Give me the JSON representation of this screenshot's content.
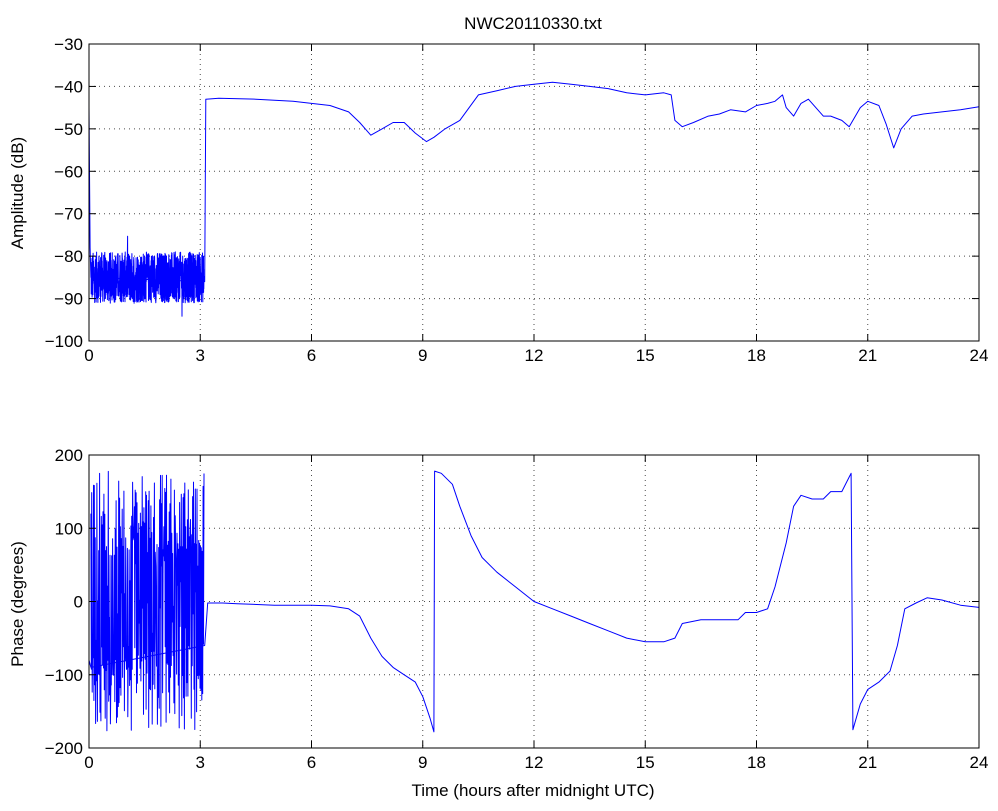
{
  "figure": {
    "title": "NWC20110330.txt"
  },
  "chart_data": [
    {
      "type": "line",
      "title": "NWC20110330.txt",
      "xlabel": "",
      "ylabel": "Amplitude (dB)",
      "xlim": [
        0,
        24
      ],
      "ylim": [
        -100,
        -30
      ],
      "xticks": [
        0,
        3,
        6,
        9,
        12,
        15,
        18,
        21,
        24
      ],
      "yticks": [
        -100,
        -90,
        -80,
        -70,
        -60,
        -50,
        -40,
        -30
      ],
      "grid": true,
      "color": "#0000ff",
      "noise_band": {
        "x_start": 0.05,
        "x_end": 3.1,
        "y_center": -85,
        "y_spread": 6
      },
      "x": [
        0,
        0.03,
        0.05,
        3.12,
        3.15,
        3.5,
        4.5,
        5.5,
        6.5,
        7.0,
        7.3,
        7.6,
        7.9,
        8.2,
        8.5,
        8.8,
        9.1,
        9.3,
        9.6,
        10.0,
        10.5,
        11.0,
        11.5,
        12.0,
        12.5,
        13.0,
        13.5,
        14.0,
        14.5,
        15.0,
        15.5,
        15.7,
        15.8,
        16.0,
        16.3,
        16.7,
        17.0,
        17.3,
        17.7,
        18.0,
        18.3,
        18.5,
        18.7,
        18.8,
        19.0,
        19.2,
        19.4,
        19.6,
        19.8,
        20.0,
        20.3,
        20.5,
        20.8,
        21.0,
        21.3,
        21.5,
        21.7,
        21.9,
        22.2,
        22.5,
        23.0,
        23.5,
        24.0
      ],
      "y": [
        -45,
        -78,
        -85,
        -86,
        -43,
        -42.8,
        -43,
        -43.5,
        -44.5,
        -46,
        -48.5,
        -51.5,
        -50,
        -48.5,
        -48.5,
        -51,
        -53,
        -52,
        -50,
        -48,
        -42,
        -41,
        -40,
        -39.5,
        -39,
        -39.5,
        -40,
        -40.5,
        -41.5,
        -42,
        -41.5,
        -42,
        -48,
        -49.5,
        -48.5,
        -47,
        -46.5,
        -45.5,
        -46,
        -44.5,
        -44,
        -43.5,
        -42,
        -45,
        -47,
        -44,
        -43,
        -45,
        -47,
        -47,
        -48,
        -49.5,
        -45,
        -43.5,
        -44.5,
        -49,
        -54.5,
        -50,
        -47,
        -46.5,
        -46,
        -45.5,
        -44.8
      ]
    },
    {
      "type": "line",
      "title": "",
      "xlabel": "Time (hours after midnight UTC)",
      "ylabel": "Phase (degrees)",
      "xlim": [
        0,
        24
      ],
      "ylim": [
        -200,
        200
      ],
      "xticks": [
        0,
        3,
        6,
        9,
        12,
        15,
        18,
        21,
        24
      ],
      "yticks": [
        -200,
        -100,
        0,
        100,
        200
      ],
      "grid": true,
      "color": "#0000ff",
      "noise_band": {
        "x_start": 0.05,
        "x_end": 3.1,
        "y_center": 0,
        "y_spread": 178
      },
      "x": [
        0,
        0.05,
        3.12,
        3.2,
        3.6,
        4.0,
        5.0,
        6.0,
        6.5,
        7.0,
        7.3,
        7.6,
        7.9,
        8.2,
        8.5,
        8.8,
        9.0,
        9.2,
        9.3,
        9.32,
        9.5,
        9.8,
        10.0,
        10.3,
        10.6,
        11.0,
        11.5,
        12.0,
        12.5,
        13.0,
        13.5,
        14.0,
        14.5,
        15.0,
        15.5,
        15.8,
        16.0,
        16.5,
        17.0,
        17.5,
        17.7,
        18.0,
        18.3,
        18.5,
        18.8,
        19.0,
        19.2,
        19.5,
        19.8,
        20.0,
        20.3,
        20.5,
        20.55,
        20.6,
        20.8,
        21.0,
        21.3,
        21.6,
        21.8,
        22.0,
        22.3,
        22.6,
        23.0,
        23.5,
        24.0
      ],
      "y": [
        -80,
        -90,
        -60,
        -2,
        -2,
        -3,
        -5,
        -5,
        -6,
        -10,
        -20,
        -50,
        -75,
        -90,
        -100,
        -110,
        -130,
        -160,
        -178,
        178,
        175,
        160,
        130,
        90,
        60,
        40,
        20,
        0,
        -10,
        -20,
        -30,
        -40,
        -50,
        -55,
        -55,
        -50,
        -30,
        -25,
        -25,
        -25,
        -15,
        -15,
        -10,
        20,
        80,
        130,
        145,
        140,
        140,
        150,
        150,
        170,
        175,
        -175,
        -140,
        -120,
        -110,
        -95,
        -60,
        -10,
        -2,
        5,
        2,
        -5,
        -8
      ]
    }
  ]
}
